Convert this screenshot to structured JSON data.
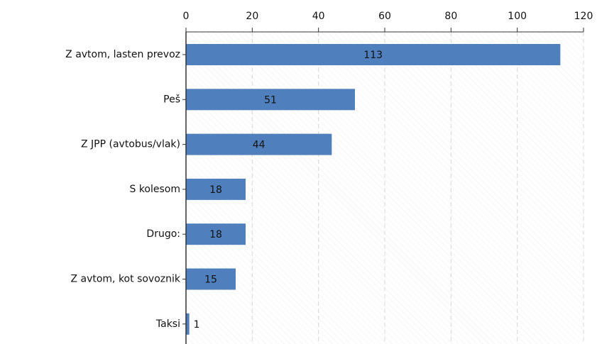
{
  "chart_data": {
    "type": "bar",
    "orientation": "horizontal",
    "categories": [
      "Z avtom, lasten prevoz",
      "Peš",
      "Z JPP (avtobus/vlak)",
      "S kolesom",
      "Drugo:",
      "Z avtom, kot sovoznik",
      "Taksi"
    ],
    "values": [
      113,
      51,
      44,
      18,
      18,
      15,
      1
    ],
    "color": "#4f7fbd",
    "xlim": [
      0,
      120
    ],
    "xticks": [
      0,
      20,
      40,
      60,
      80,
      100,
      120
    ],
    "grid": true
  }
}
